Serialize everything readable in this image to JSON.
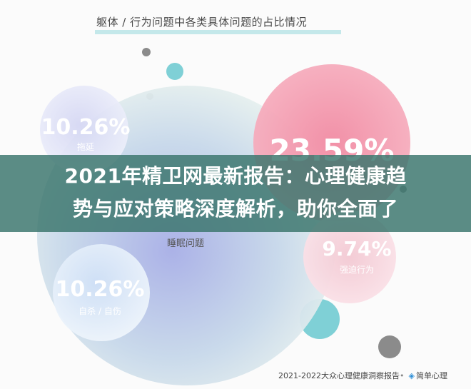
{
  "title": "躯体 / 行为问题中各类具体问题的占比情况",
  "overlay_headline": "2021年精卫网最新报告：心理健康趋\n势与应对策略深度解析，助你全面了",
  "source_note": "2021-2022大众心理健康洞察报告",
  "brand_mark": "简单心理",
  "colors": {
    "pink": "#ef8aa1",
    "blue_green_center": "#b8b1d9",
    "teal": "#7fd0d6",
    "grey": "#8b8b8b",
    "banner": "#3c766e"
  },
  "chart_data": {
    "type": "bubble",
    "title": "躯体 / 行为问题中各类具体问题的占比情况",
    "series": [
      {
        "label": "睡眠问题",
        "value_text": "",
        "value": null
      },
      {
        "label": "",
        "value_text": "23.59%",
        "value": 23.59
      },
      {
        "label": "拖延",
        "value_text": "10.26%",
        "value": 10.26
      },
      {
        "label": "自杀 / 自伤",
        "value_text": "10.26%",
        "value": 10.26
      },
      {
        "label": "强迫行为",
        "value_text": "9.74%",
        "value": 9.74
      }
    ]
  }
}
